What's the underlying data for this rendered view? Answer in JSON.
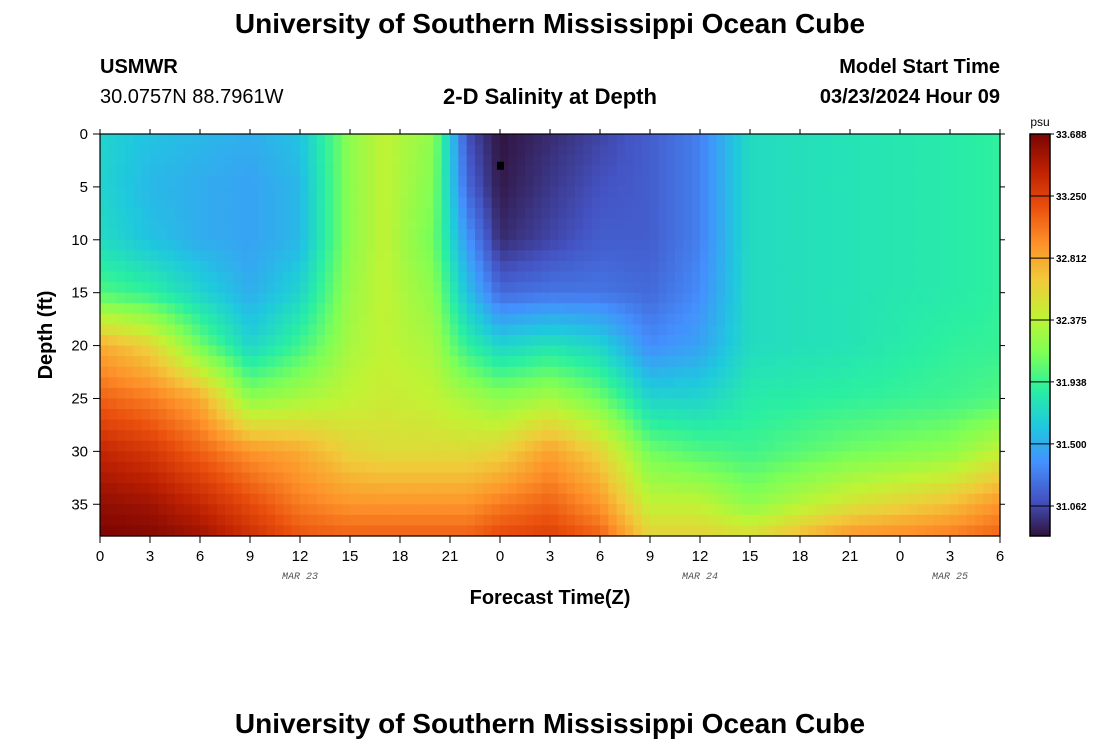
{
  "header": {
    "title": "University of Southern Mississippi Ocean Cube",
    "station": "USMWR",
    "coords": "30.0757N  88.7961W",
    "subtitle": "2-D Salinity at Depth",
    "model_start_label": "Model Start Time",
    "model_start_value": "03/23/2024 Hour 09",
    "bottom_title": "University of Southern Mississippi Ocean Cube"
  },
  "chart_data": {
    "type": "heatmap",
    "xlabel": "Forecast Time(Z)",
    "ylabel": "Depth (ft)",
    "x_range_hours": [
      0,
      54
    ],
    "y_range": [
      0,
      38
    ],
    "y_inverted": true,
    "x_ticks": [
      {
        "h": 0,
        "label": "0"
      },
      {
        "h": 3,
        "label": "3"
      },
      {
        "h": 6,
        "label": "6"
      },
      {
        "h": 9,
        "label": "9"
      },
      {
        "h": 12,
        "label": "12"
      },
      {
        "h": 15,
        "label": "15"
      },
      {
        "h": 18,
        "label": "18"
      },
      {
        "h": 21,
        "label": "21"
      },
      {
        "h": 24,
        "label": "0"
      },
      {
        "h": 27,
        "label": "3"
      },
      {
        "h": 30,
        "label": "6"
      },
      {
        "h": 33,
        "label": "9"
      },
      {
        "h": 36,
        "label": "12"
      },
      {
        "h": 39,
        "label": "15"
      },
      {
        "h": 42,
        "label": "18"
      },
      {
        "h": 45,
        "label": "21"
      },
      {
        "h": 48,
        "label": "0"
      },
      {
        "h": 51,
        "label": "3"
      },
      {
        "h": 54,
        "label": "6"
      }
    ],
    "date_labels": [
      {
        "h": 12,
        "label": "MAR 23"
      },
      {
        "h": 36,
        "label": "MAR 24"
      },
      {
        "h": 51,
        "label": "MAR 25"
      }
    ],
    "y_ticks": [
      0,
      5,
      10,
      15,
      20,
      25,
      30,
      35
    ],
    "colorbar": {
      "unit": "psu",
      "min": 30.85,
      "max": 33.688,
      "labels": [
        "33.688",
        "33.250",
        "32.812",
        "32.375",
        "31.938",
        "31.500",
        "31.062"
      ],
      "colors": [
        "#30123b",
        "#4454c4",
        "#4490fe",
        "#1fc8de",
        "#29efa2",
        "#7dff56",
        "#c1f334",
        "#f1ca3a",
        "#fe922a",
        "#ea4f0d",
        "#be2102",
        "#7a0403"
      ]
    },
    "salinity_depth_levels_ft": [
      0,
      5,
      10,
      15,
      20,
      25,
      30,
      35,
      38
    ],
    "salinity_profiles": [
      {
        "h": 0,
        "values": [
          31.7,
          31.7,
          31.75,
          32.0,
          32.8,
          33.1,
          33.4,
          33.6,
          33.68
        ]
      },
      {
        "h": 3,
        "values": [
          31.6,
          31.55,
          31.6,
          31.9,
          32.6,
          33.0,
          33.3,
          33.55,
          33.65
        ]
      },
      {
        "h": 6,
        "values": [
          31.55,
          31.5,
          31.5,
          31.7,
          32.1,
          32.8,
          33.1,
          33.4,
          33.55
        ]
      },
      {
        "h": 9,
        "values": [
          31.5,
          31.45,
          31.45,
          31.5,
          31.7,
          32.2,
          32.9,
          33.2,
          33.35
        ]
      },
      {
        "h": 12,
        "values": [
          31.6,
          31.55,
          31.55,
          31.7,
          31.95,
          32.3,
          32.8,
          33.0,
          33.15
        ]
      },
      {
        "h": 15,
        "values": [
          32.2,
          32.2,
          32.2,
          32.25,
          32.3,
          32.4,
          32.6,
          32.9,
          33.1
        ]
      },
      {
        "h": 17,
        "values": [
          32.4,
          32.4,
          32.4,
          32.4,
          32.4,
          32.45,
          32.55,
          32.9,
          33.1
        ]
      },
      {
        "h": 20,
        "values": [
          32.2,
          32.15,
          32.1,
          32.2,
          32.3,
          32.4,
          32.55,
          32.9,
          33.1
        ]
      },
      {
        "h": 22,
        "values": [
          31.1,
          31.2,
          31.4,
          31.6,
          31.9,
          32.3,
          32.55,
          32.9,
          33.1
        ]
      },
      {
        "h": 24,
        "values": [
          30.86,
          30.88,
          30.95,
          31.2,
          31.7,
          32.2,
          32.6,
          33.0,
          33.2
        ]
      },
      {
        "h": 27,
        "values": [
          30.95,
          31.0,
          31.05,
          31.25,
          31.8,
          32.3,
          32.85,
          33.1,
          33.25
        ]
      },
      {
        "h": 30,
        "values": [
          31.05,
          31.1,
          31.15,
          31.25,
          31.7,
          32.1,
          32.6,
          32.9,
          33.1
        ]
      },
      {
        "h": 33,
        "values": [
          31.15,
          31.15,
          31.15,
          31.2,
          31.35,
          31.7,
          32.1,
          32.4,
          32.6
        ]
      },
      {
        "h": 36,
        "values": [
          31.3,
          31.3,
          31.3,
          31.35,
          31.45,
          31.7,
          32.0,
          32.4,
          32.6
        ]
      },
      {
        "h": 39,
        "values": [
          31.75,
          31.75,
          31.75,
          31.75,
          31.75,
          31.85,
          31.95,
          32.2,
          32.55
        ]
      },
      {
        "h": 45,
        "values": [
          31.8,
          31.8,
          31.8,
          31.8,
          31.8,
          31.9,
          32.1,
          32.5,
          32.9
        ]
      },
      {
        "h": 51,
        "values": [
          31.85,
          31.85,
          31.85,
          31.85,
          31.9,
          31.95,
          32.2,
          32.7,
          33.0
        ]
      },
      {
        "h": 54,
        "values": [
          31.9,
          31.9,
          31.9,
          31.9,
          31.92,
          32.0,
          32.4,
          32.9,
          33.1
        ]
      }
    ],
    "marker": {
      "h": 24,
      "depth": 3
    }
  }
}
